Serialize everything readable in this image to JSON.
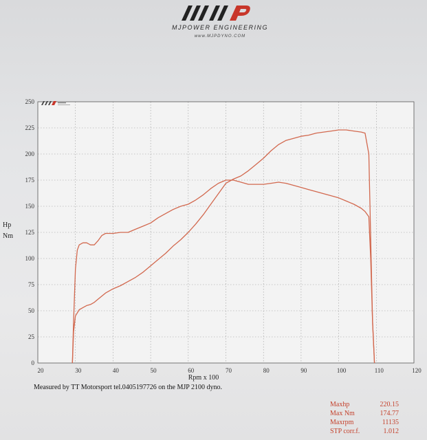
{
  "header": {
    "company": "MJPOWER ENGINEERING",
    "website": "www.MJPDYNO.COM",
    "logo_icon": "mjp-logo-icon"
  },
  "chart_data": {
    "type": "line",
    "xlabel": "Rpm x 100",
    "ylabel": [
      "Hp",
      "Nm"
    ],
    "xlim": [
      20,
      120
    ],
    "ylim": [
      0,
      250
    ],
    "x_ticks": [
      "20",
      "30",
      "40",
      "50",
      "60",
      "70",
      "80",
      "90",
      "100",
      "110",
      "120"
    ],
    "y_ticks": [
      "0",
      "25",
      "50",
      "75",
      "100",
      "125",
      "150",
      "175",
      "200",
      "225",
      "250"
    ],
    "grid": true,
    "colors": {
      "series": "#d2684e",
      "axis": "#555555",
      "grid": "#999999",
      "stats": "#c4412c"
    },
    "series": [
      {
        "x": [
          29.2,
          29.5,
          30,
          31,
          32,
          33,
          34,
          35,
          36,
          38,
          40,
          42,
          44,
          46,
          48,
          50,
          52,
          54,
          56,
          58,
          60,
          62,
          64,
          66,
          68,
          70,
          72,
          74,
          76,
          78,
          80,
          82,
          84,
          86,
          88,
          90,
          92,
          94,
          96,
          98,
          100,
          102,
          104,
          106,
          107,
          108,
          108.5,
          109,
          109.5
        ],
        "values": [
          0,
          30,
          45,
          51,
          53,
          55,
          56,
          58,
          61,
          67,
          71,
          74,
          78,
          82,
          87,
          93,
          99,
          105,
          112,
          118,
          125,
          133,
          142,
          152,
          162,
          172,
          176,
          179,
          184,
          190,
          196,
          203,
          209,
          213,
          215,
          217,
          218,
          220,
          221,
          222,
          223,
          223,
          222,
          221,
          220,
          200,
          120,
          40,
          0
        ]
      },
      {
        "x": [
          29.2,
          29.5,
          30,
          30.5,
          31,
          32,
          33,
          34,
          35,
          36,
          37,
          38,
          40,
          42,
          44,
          46,
          48,
          50,
          52,
          54,
          56,
          58,
          60,
          62,
          64,
          66,
          68,
          70,
          72,
          74,
          76,
          78,
          80,
          82,
          84,
          86,
          88,
          90,
          92,
          94,
          96,
          98,
          100,
          102,
          104,
          106,
          107,
          108,
          108.5,
          109,
          109.5
        ],
        "values": [
          0,
          40,
          90,
          108,
          113,
          115,
          115,
          113,
          113,
          117,
          122,
          124,
          124,
          125,
          125,
          128,
          131,
          134,
          139,
          143,
          147,
          150,
          152,
          156,
          161,
          167,
          172,
          175,
          175,
          173,
          171,
          171,
          171,
          172,
          173,
          172,
          170,
          168,
          166,
          164,
          162,
          160,
          158,
          155,
          152,
          148,
          145,
          140,
          100,
          40,
          0
        ]
      }
    ]
  },
  "footer": {
    "measurement_note": "Measured by TT Motorsport tel.0405197726 on the MJP 2100 dyno.",
    "stats": [
      {
        "label": "Maxhp",
        "value": "220.15"
      },
      {
        "label": "Max Nm",
        "value": "174.77"
      },
      {
        "label": "Maxrpm",
        "value": "11135"
      },
      {
        "label": "STP corr.f.",
        "value": "1.012"
      }
    ]
  }
}
